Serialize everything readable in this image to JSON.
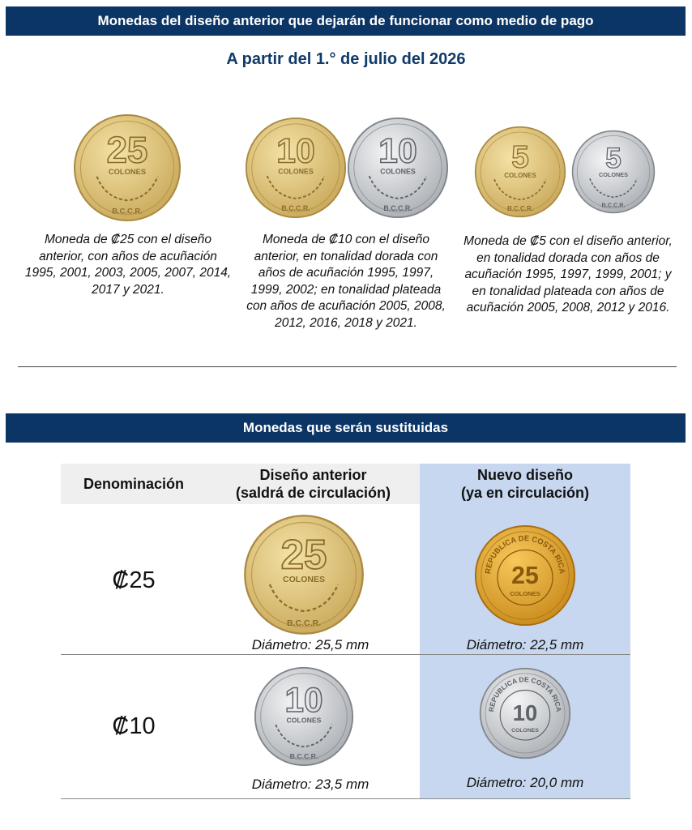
{
  "section1": {
    "title": "Monedas del diseño anterior que dejarán de funcionar como medio de pago",
    "subtitle": "A partir del 1.° de julio del 2026",
    "captions": [
      "Moneda de ₡25 con el diseño anterior, con años de acuñación 1995, 2001, 2003, 2005, 2007, 2014, 2017 y 2021.",
      "Moneda de ₡10 con el diseño anterior, en tonalidad dorada con años de acuñación 1995, 1997, 1999, 2002; en tonalidad plateada con años de acuñación 2005, 2008, 2012, 2016, 2018 y 2021.",
      "Moneda de ₡5 con el diseño anterior, en tonalidad dorada con años de acuñación 1995, 1997, 1999, 2001; y en tonalidad plateada con años de acuñación 2005, 2008, 2012 y 2016."
    ]
  },
  "section2": {
    "title": "Monedas que serán sustituidas",
    "headers": {
      "denomination": "Denominación",
      "old_design": "Diseño anterior\n(saldrá de circulación)",
      "new_design": "Nuevo diseño\n(ya en circulación)"
    },
    "rows": [
      {
        "denomination": "₡25",
        "old_diameter": "Diámetro: 25,5 mm",
        "new_diameter": "Diámetro: 22,5 mm"
      },
      {
        "denomination": "₡10",
        "old_diameter": "Diámetro: 23,5 mm",
        "new_diameter": "Diámetro: 20,0 mm"
      }
    ]
  },
  "coin_inscriptions": {
    "colones": "COLONES",
    "bccr": "B.C.C.R.",
    "republica": "REPUBLICA DE COSTA RICA"
  },
  "coins": [
    {
      "id": "s1-25",
      "value": "25",
      "finish": "gold",
      "style": "old"
    },
    {
      "id": "s1-10g",
      "value": "10",
      "finish": "gold",
      "style": "old"
    },
    {
      "id": "s1-10s",
      "value": "10",
      "finish": "silver",
      "style": "old"
    },
    {
      "id": "s1-5g",
      "value": "5",
      "finish": "gold",
      "style": "old"
    },
    {
      "id": "s1-5s",
      "value": "5",
      "finish": "silver",
      "style": "old"
    },
    {
      "id": "t-25-old",
      "value": "25",
      "finish": "gold",
      "style": "old"
    },
    {
      "id": "t-25-new",
      "value": "25",
      "finish": "deepgold",
      "style": "new"
    },
    {
      "id": "t-10-old",
      "value": "10",
      "finish": "silver",
      "style": "old"
    },
    {
      "id": "t-10-new",
      "value": "10",
      "finish": "silver",
      "style": "new"
    }
  ],
  "colors": {
    "header_bg": "#0b3565",
    "subtitle": "#103a6a",
    "table_header_grey": "#efefef",
    "new_design_bg": "#c6d7ef"
  }
}
